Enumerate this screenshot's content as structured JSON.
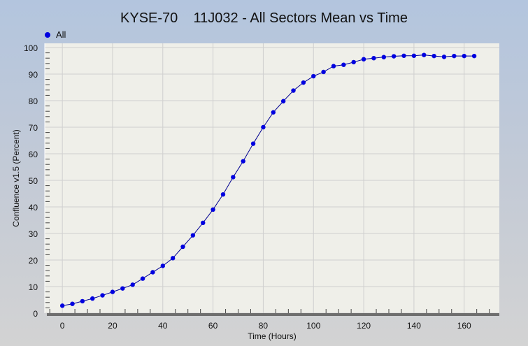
{
  "chart_data": {
    "type": "line",
    "title": "KYSE-70    11J032 - All Sectors Mean vs Time",
    "xlabel": "Time (Hours)",
    "ylabel": "Confluence v1.5 (Percent)",
    "xlim": [
      -7,
      174
    ],
    "ylim": [
      0,
      100
    ],
    "xticks": [
      0,
      20,
      40,
      60,
      80,
      100,
      120,
      140,
      160
    ],
    "yticks": [
      0,
      10,
      20,
      30,
      40,
      50,
      60,
      70,
      80,
      90,
      100
    ],
    "grid": true,
    "legend": "top-left",
    "series": [
      {
        "name": "All",
        "color": "#0000e0",
        "x": [
          0,
          4,
          8,
          12,
          16,
          20,
          24,
          28,
          32,
          36,
          40,
          44,
          48,
          52,
          56,
          60,
          64,
          68,
          72,
          76,
          80,
          84,
          88,
          92,
          96,
          100,
          104,
          108,
          112,
          116,
          120,
          124,
          128,
          132,
          136,
          140,
          144,
          148,
          152,
          156,
          160,
          164
        ],
        "y": [
          2.8,
          3.5,
          4.5,
          5.5,
          6.7,
          8.0,
          9.3,
          10.7,
          13.0,
          15.4,
          17.8,
          20.7,
          25.0,
          29.3,
          34.0,
          39.0,
          44.7,
          51.2,
          57.2,
          63.8,
          70.0,
          75.6,
          79.8,
          83.8,
          86.8,
          89.2,
          90.8,
          93.0,
          93.5,
          94.5,
          95.6,
          96.0,
          96.4,
          96.7,
          96.9,
          96.9,
          97.2,
          96.8,
          96.5,
          96.8,
          96.8,
          96.8
        ]
      }
    ]
  }
}
